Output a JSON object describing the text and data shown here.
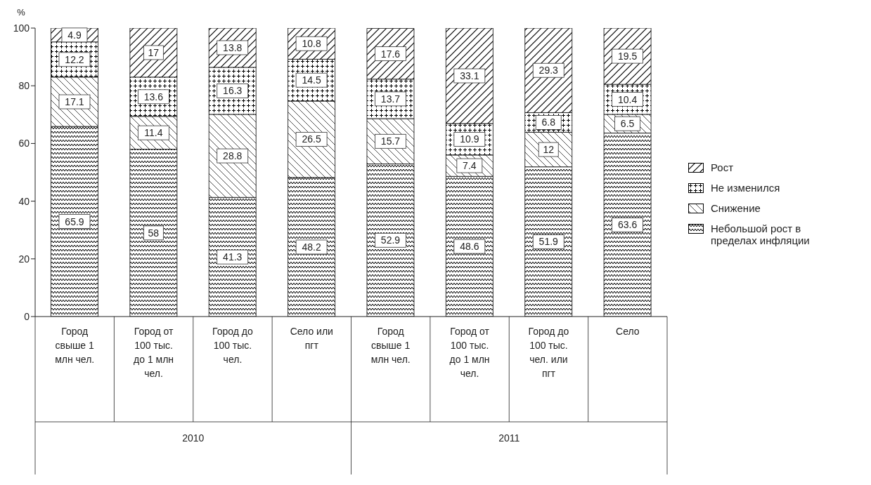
{
  "chart_data": {
    "type": "bar",
    "stacked": true,
    "ylabel": "%",
    "categories": [
      "Город свыше 1 млн чел.",
      "Город от 100 тыс. до 1 млн чел.",
      "Город до 100 тыс. чел.",
      "Село или пгт",
      "Город свыше 1 млн чел.",
      "Город от 100 тыс. до 1 млн чел.",
      "Город до 100 тыс. чел. или пгт",
      "Село"
    ],
    "series": [
      {
        "name": "Небольшой рост в пределах инфляции",
        "color": "#000000",
        "values": [
          65.9,
          58,
          41.3,
          48.2,
          52.9,
          48.6,
          51.9,
          63.6
        ]
      },
      {
        "name": "Снижение",
        "color": "#000000",
        "values": [
          17.1,
          11.4,
          28.8,
          26.5,
          15.7,
          7.4,
          12,
          6.5
        ]
      },
      {
        "name": "Не изменился",
        "color": "#000000",
        "values": [
          12.2,
          13.6,
          16.3,
          14.5,
          13.7,
          10.9,
          6.8,
          10.4
        ]
      },
      {
        "name": "Рост",
        "color": "#000000",
        "values": [
          4.9,
          17,
          13.8,
          10.8,
          17.6,
          33.1,
          29.3,
          19.5
        ]
      }
    ],
    "ylim": [
      0,
      100
    ],
    "yticks": [
      0,
      20,
      40,
      60,
      80,
      100
    ],
    "grid": false,
    "legend": "right",
    "data_labels": true,
    "annotations": [
      "2010",
      "2011"
    ]
  }
}
